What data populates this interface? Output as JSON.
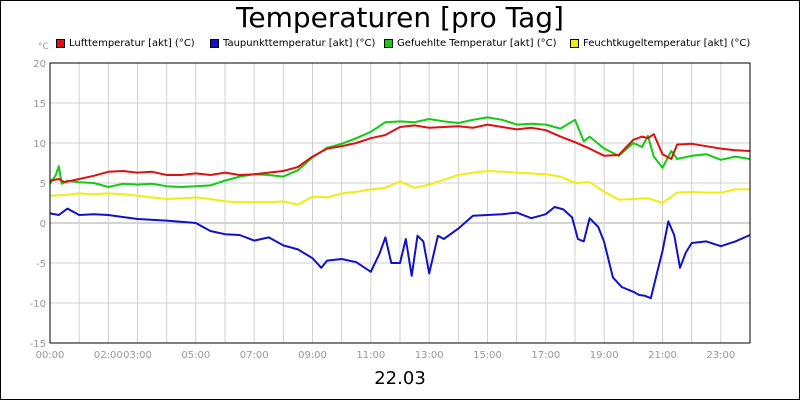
{
  "chart_data": {
    "type": "line",
    "title": "Temperaturen [pro Tag]",
    "xlabel": "22.03",
    "ylabel": "°C",
    "ylim": [
      -15,
      20
    ],
    "yticks": [
      "20",
      "15",
      "10",
      "5",
      "0",
      "-5",
      "-10",
      "-15"
    ],
    "yticks_values": [
      20,
      15,
      10,
      5,
      0,
      -5,
      -10,
      -15
    ],
    "xlim": [
      0,
      24
    ],
    "xticks": [
      {
        "t": 0,
        "label": "00:00"
      },
      {
        "t": 2,
        "label": "02:00"
      },
      {
        "t": 3,
        "label": "03:00"
      },
      {
        "t": 5,
        "label": "05:00"
      },
      {
        "t": 7,
        "label": "07:00"
      },
      {
        "t": 9,
        "label": "09:00"
      },
      {
        "t": 11,
        "label": "11:00"
      },
      {
        "t": 13,
        "label": "13:00"
      },
      {
        "t": 15,
        "label": "15:00"
      },
      {
        "t": 17,
        "label": "17:00"
      },
      {
        "t": 19,
        "label": "19:00"
      },
      {
        "t": 21,
        "label": "21:00"
      },
      {
        "t": 23,
        "label": "23:00"
      }
    ],
    "grid": true,
    "legend_position": "top",
    "series": [
      {
        "name": "Lufttemperatur [akt] (°C)",
        "color": "#dd1111",
        "x": [
          0,
          0.3,
          0.5,
          1,
          1.5,
          2,
          2.5,
          3,
          3.5,
          4,
          4.5,
          5,
          5.5,
          6,
          6.5,
          7,
          7.5,
          8,
          8.5,
          9,
          9.5,
          10,
          10.5,
          11,
          11.5,
          12,
          12.5,
          13,
          13.5,
          14,
          14.5,
          15,
          15.5,
          16,
          16.5,
          17,
          17.5,
          18,
          18.5,
          19,
          19.5,
          20,
          20.3,
          20.5,
          20.7,
          21,
          21.3,
          21.5,
          22,
          22.5,
          23,
          23.5,
          24
        ],
        "y": [
          5.3,
          5.5,
          5.1,
          5.5,
          5.9,
          6.4,
          6.5,
          6.3,
          6.4,
          6.0,
          6.0,
          6.2,
          6.0,
          6.3,
          6.0,
          6.1,
          6.3,
          6.5,
          7.0,
          8.3,
          9.3,
          9.6,
          10.0,
          10.6,
          11.0,
          12.0,
          12.2,
          11.9,
          12.0,
          12.1,
          11.9,
          12.3,
          12.0,
          11.7,
          11.9,
          11.6,
          10.8,
          10.1,
          9.3,
          8.4,
          8.5,
          10.4,
          10.8,
          10.6,
          11.1,
          8.6,
          8.0,
          9.8,
          9.9,
          9.6,
          9.3,
          9.1,
          9.0
        ]
      },
      {
        "name": "Taupunkttemperatur [akt] (°C)",
        "color": "#1111cc",
        "x": [
          0,
          0.3,
          0.6,
          1,
          1.5,
          2,
          3,
          4,
          5,
          5.5,
          6,
          6.5,
          7,
          7.5,
          8,
          8.5,
          9,
          9.3,
          9.5,
          10,
          10.5,
          11,
          11.3,
          11.5,
          11.7,
          12,
          12.2,
          12.4,
          12.6,
          12.8,
          13,
          13.3,
          13.5,
          14,
          14.5,
          15,
          15.5,
          16,
          16.5,
          17,
          17.3,
          17.6,
          17.9,
          18.1,
          18.3,
          18.5,
          18.8,
          19,
          19.3,
          19.6,
          20,
          20.2,
          20.4,
          20.6,
          20.8,
          21,
          21.2,
          21.4,
          21.6,
          21.8,
          22,
          22.5,
          23,
          23.5,
          24
        ],
        "y": [
          1.2,
          1.0,
          1.8,
          1.0,
          1.1,
          1.0,
          0.5,
          0.3,
          0.0,
          -1.0,
          -1.4,
          -1.5,
          -2.2,
          -1.8,
          -2.8,
          -3.3,
          -4.4,
          -5.6,
          -4.7,
          -4.5,
          -4.9,
          -6.1,
          -3.8,
          -1.8,
          -5.0,
          -5.0,
          -2.0,
          -6.6,
          -1.6,
          -2.3,
          -6.3,
          -1.6,
          -2.0,
          -0.7,
          0.9,
          1.0,
          1.1,
          1.3,
          0.6,
          1.1,
          2.0,
          1.7,
          0.7,
          -2.0,
          -2.3,
          0.6,
          -0.5,
          -2.4,
          -6.8,
          -8.0,
          -8.6,
          -9.0,
          -9.1,
          -9.4,
          -6.4,
          -3.5,
          0.2,
          -1.5,
          -5.6,
          -3.7,
          -2.5,
          -2.3,
          -2.9,
          -2.3,
          -1.5
        ]
      },
      {
        "name": "Gefuehlte Temperatur [akt] (°C)",
        "color": "#11cc11",
        "x": [
          0,
          0.2,
          0.3,
          0.4,
          0.6,
          1,
          1.5,
          2,
          2.5,
          3,
          3.5,
          4,
          4.5,
          5,
          5.5,
          6,
          6.5,
          7,
          7.5,
          8,
          8.5,
          9,
          9.5,
          10,
          10.5,
          11,
          11.5,
          12,
          12.5,
          13,
          13.5,
          14,
          14.5,
          15,
          15.5,
          16,
          16.5,
          17,
          17.5,
          18,
          18.3,
          18.5,
          19,
          19.5,
          20,
          20.3,
          20.5,
          20.7,
          21,
          21.3,
          21.5,
          22,
          22.5,
          23,
          23.5,
          24
        ],
        "y": [
          4.9,
          6.0,
          7.1,
          4.9,
          5.3,
          5.1,
          5.0,
          4.5,
          4.9,
          4.8,
          4.9,
          4.6,
          4.5,
          4.6,
          4.7,
          5.3,
          5.8,
          6.1,
          6.0,
          5.8,
          6.6,
          8.2,
          9.4,
          9.9,
          10.6,
          11.4,
          12.6,
          12.7,
          12.6,
          13.0,
          12.7,
          12.5,
          12.9,
          13.2,
          12.9,
          12.3,
          12.4,
          12.3,
          11.8,
          12.9,
          10.2,
          10.8,
          9.3,
          8.4,
          10.0,
          9.5,
          10.9,
          8.3,
          6.9,
          9.0,
          8.0,
          8.4,
          8.6,
          7.9,
          8.3,
          8.0
        ]
      },
      {
        "name": "Feuchtkugeltemperatur [akt] (°C)",
        "color": "#eeee11",
        "x": [
          0,
          0.5,
          1,
          1.5,
          2,
          2.5,
          3,
          3.5,
          4,
          4.5,
          5,
          5.5,
          6,
          6.5,
          7,
          7.5,
          8,
          8.5,
          9,
          9.5,
          10,
          10.5,
          11,
          11.5,
          12,
          12.5,
          13,
          13.5,
          14,
          14.5,
          15,
          15.5,
          16,
          16.5,
          17,
          17.5,
          18,
          18.5,
          19,
          19.5,
          20,
          20.5,
          21,
          21.5,
          22,
          22.5,
          23,
          23.5,
          24
        ],
        "y": [
          3.4,
          3.5,
          3.7,
          3.6,
          3.7,
          3.6,
          3.4,
          3.2,
          3.0,
          3.1,
          3.2,
          3.0,
          2.7,
          2.6,
          2.6,
          2.6,
          2.7,
          2.3,
          3.3,
          3.2,
          3.7,
          3.9,
          4.2,
          4.4,
          5.2,
          4.4,
          4.8,
          5.4,
          6.0,
          6.3,
          6.5,
          6.4,
          6.3,
          6.2,
          6.1,
          5.8,
          5.0,
          5.1,
          3.9,
          2.9,
          3.0,
          3.1,
          2.5,
          3.8,
          3.9,
          3.8,
          3.8,
          4.2,
          4.2
        ]
      }
    ]
  }
}
